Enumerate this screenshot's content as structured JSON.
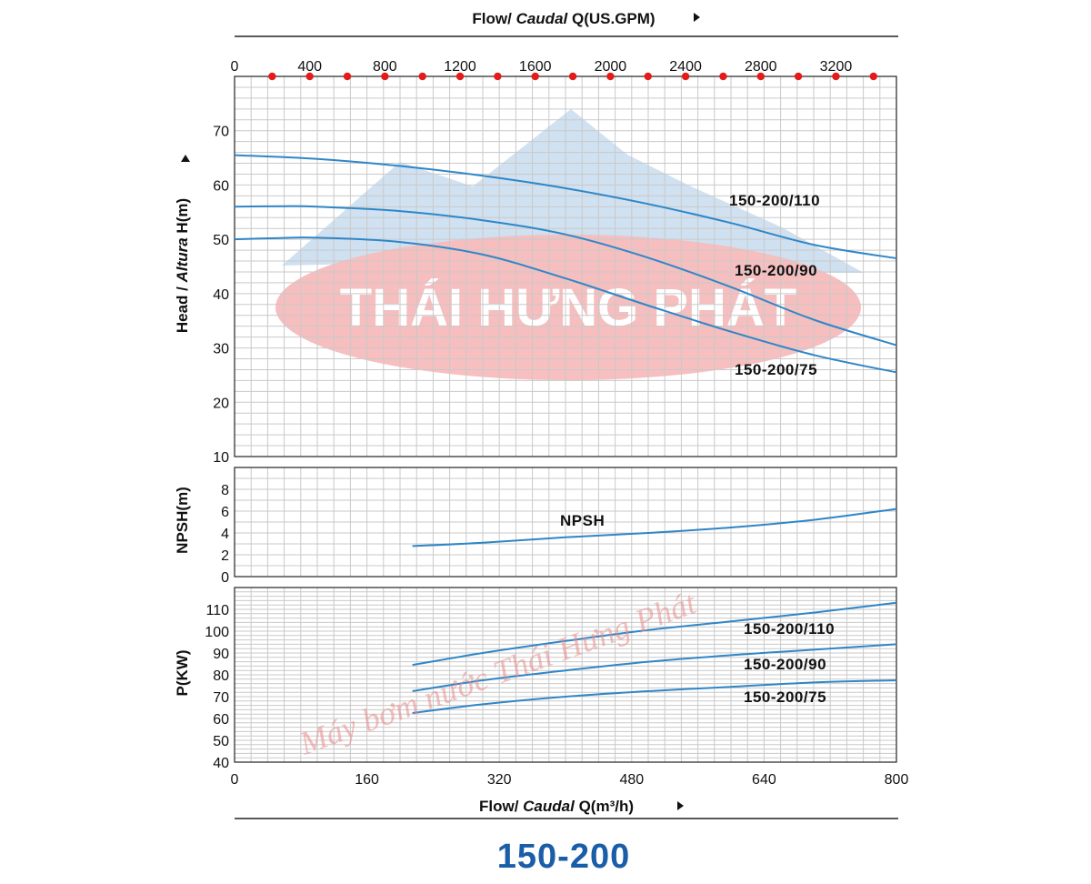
{
  "header": {
    "top_axis_prefix": "Flow/ ",
    "top_axis_italic": "Caudal",
    "top_axis_unit": " Q(US.GPM)"
  },
  "footer": {
    "bottom_axis_prefix": "Flow/ ",
    "bottom_axis_italic": "Caudal",
    "bottom_axis_unit": " Q(m³/h)",
    "model_title": "150-200"
  },
  "watermark": {
    "brand": "THÁI HƯNG PHÁT",
    "script": "Máy bơm nước Thái Hưng Phát",
    "colors": {
      "ellipse": "#f08a8a",
      "mountain": "#a9c8e6"
    }
  },
  "colors": {
    "curve": "#2f86c7",
    "marker": "#e41b1b",
    "title": "#1a5ea8"
  },
  "chart_data": [
    {
      "type": "line",
      "panel": "head",
      "ylabel_prefix": "Head / ",
      "ylabel_italic": "Altura",
      "ylabel_unit": " H(m)",
      "xlim": [
        0,
        800
      ],
      "ylim": [
        10,
        80
      ],
      "yticks": [
        10,
        20,
        30,
        40,
        50,
        60,
        70
      ],
      "x_ticks_bottom": [
        0,
        160,
        320,
        480,
        640,
        800
      ],
      "x_ticks_top_gpm": [
        0,
        400,
        800,
        1200,
        1600,
        2000,
        2400,
        2800,
        3200
      ],
      "gpm_markers": [
        200,
        400,
        600,
        800,
        1000,
        1200,
        1400,
        1600,
        1800,
        2000,
        2200,
        2400,
        2600,
        2800,
        3000,
        3200,
        3400
      ],
      "gpm_max": 3522,
      "series": [
        {
          "name": "150-200/110",
          "x": [
            0,
            100,
            200,
            300,
            400,
            500,
            600,
            700,
            800
          ],
          "y": [
            65.5,
            64.8,
            63.5,
            61.7,
            59.4,
            56.5,
            53.0,
            49.0,
            46.5
          ]
        },
        {
          "name": "150-200/90",
          "x": [
            0,
            60,
            100,
            200,
            300,
            400,
            500,
            600,
            700,
            800
          ],
          "y": [
            56.0,
            56.1,
            56.0,
            55.2,
            53.5,
            50.9,
            46.6,
            41.2,
            35.2,
            30.5
          ]
        },
        {
          "name": "150-200/75",
          "x": [
            0,
            50,
            100,
            200,
            300,
            400,
            500,
            600,
            700,
            800
          ],
          "y": [
            50.0,
            50.2,
            50.3,
            49.5,
            47.2,
            42.8,
            37.8,
            33.0,
            28.7,
            25.5
          ]
        }
      ]
    },
    {
      "type": "line",
      "panel": "npsh",
      "ylabel": "NPSH(m)",
      "xlim": [
        0,
        800
      ],
      "ylim": [
        0,
        10
      ],
      "yticks": [
        0,
        2,
        4,
        6,
        8
      ],
      "series": [
        {
          "name": "NPSH",
          "x": [
            215,
            300,
            400,
            500,
            600,
            700,
            800
          ],
          "y": [
            2.8,
            3.1,
            3.6,
            4.0,
            4.5,
            5.2,
            6.2
          ]
        }
      ]
    },
    {
      "type": "line",
      "panel": "power",
      "ylabel": "P(KW)",
      "xlim": [
        0,
        800
      ],
      "ylim": [
        40,
        120
      ],
      "yticks": [
        40,
        50,
        60,
        70,
        80,
        90,
        100,
        110
      ],
      "series": [
        {
          "name": "150-200/110",
          "x": [
            215,
            300,
            400,
            500,
            600,
            700,
            800
          ],
          "y": [
            84.5,
            90.0,
            95.5,
            100.5,
            104.5,
            108.5,
            113.0
          ]
        },
        {
          "name": "150-200/90",
          "x": [
            215,
            300,
            400,
            500,
            600,
            700,
            800
          ],
          "y": [
            72.5,
            77.5,
            82.0,
            86.0,
            89.0,
            91.5,
            94.0
          ]
        },
        {
          "name": "150-200/75",
          "x": [
            215,
            300,
            400,
            500,
            600,
            700,
            800
          ],
          "y": [
            62.5,
            66.5,
            70.0,
            72.5,
            74.5,
            76.5,
            77.5
          ]
        }
      ]
    }
  ]
}
